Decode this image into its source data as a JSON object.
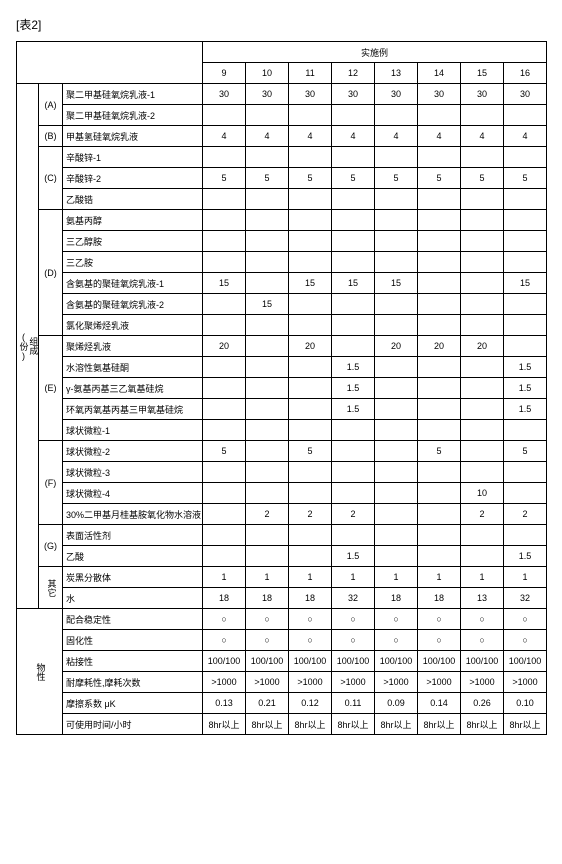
{
  "title": "[表2]",
  "section_header": "实施例",
  "composition_header": "组成\n(份)",
  "properties_header": "物性",
  "groups": {
    "A": "(A)",
    "B": "(B)",
    "C": "(C)",
    "D": "(D)",
    "E": "(E)",
    "F": "(F)",
    "G": "(G)",
    "other": "其它"
  },
  "cols": [
    "9",
    "10",
    "11",
    "12",
    "13",
    "14",
    "15",
    "16"
  ],
  "rows": [
    {
      "l": "聚二甲基硅氧烷乳液-1",
      "v": [
        "30",
        "30",
        "30",
        "30",
        "30",
        "30",
        "30",
        "30"
      ]
    },
    {
      "l": "聚二甲基硅氧烷乳液-2",
      "v": [
        "",
        "",
        "",
        "",
        "",
        "",
        "",
        ""
      ]
    },
    {
      "l": "甲基氢硅氧烷乳液",
      "v": [
        "4",
        "4",
        "4",
        "4",
        "4",
        "4",
        "4",
        "4"
      ]
    },
    {
      "l": "辛酸锌-1",
      "v": [
        "",
        "",
        "",
        "",
        "",
        "",
        "",
        ""
      ]
    },
    {
      "l": "辛酸锌-2",
      "v": [
        "5",
        "5",
        "5",
        "5",
        "5",
        "5",
        "5",
        "5"
      ]
    },
    {
      "l": "乙酸锆",
      "v": [
        "",
        "",
        "",
        "",
        "",
        "",
        "",
        ""
      ]
    },
    {
      "l": "氨基丙醇",
      "v": [
        "",
        "",
        "",
        "",
        "",
        "",
        "",
        ""
      ]
    },
    {
      "l": "三乙醇胺",
      "v": [
        "",
        "",
        "",
        "",
        "",
        "",
        "",
        ""
      ]
    },
    {
      "l": "三乙胺",
      "v": [
        "",
        "",
        "",
        "",
        "",
        "",
        "",
        ""
      ]
    },
    {
      "l": "含氨基的聚硅氧烷乳液-1",
      "v": [
        "15",
        "",
        "15",
        "15",
        "15",
        "",
        "",
        "15"
      ]
    },
    {
      "l": "含氨基的聚硅氧烷乳液-2",
      "v": [
        "",
        "15",
        "",
        "",
        "",
        "",
        "",
        ""
      ]
    },
    {
      "l": "氯化聚烯烃乳液",
      "v": [
        "",
        "",
        "",
        "",
        "",
        "",
        "",
        ""
      ]
    },
    {
      "l": "聚烯烃乳液",
      "v": [
        "20",
        "",
        "20",
        "",
        "20",
        "20",
        "20",
        ""
      ]
    },
    {
      "l": "水溶性氨基硅酮",
      "v": [
        "",
        "",
        "",
        "1.5",
        "",
        "",
        "",
        "1.5"
      ]
    },
    {
      "l": "γ-氨基丙基三乙氧基硅烷",
      "v": [
        "",
        "",
        "",
        "1.5",
        "",
        "",
        "",
        "1.5"
      ]
    },
    {
      "l": "环氧丙氧基丙基三甲氧基硅烷",
      "v": [
        "",
        "",
        "",
        "1.5",
        "",
        "",
        "",
        "1.5"
      ]
    },
    {
      "l": "球状微粒-1",
      "v": [
        "",
        "",
        "",
        "",
        "",
        "",
        "",
        ""
      ]
    },
    {
      "l": "球状微粒-2",
      "v": [
        "5",
        "",
        "5",
        "",
        "",
        "5",
        "",
        "5"
      ]
    },
    {
      "l": "球状微粒-3",
      "v": [
        "",
        "",
        "",
        "",
        "",
        "",
        "",
        ""
      ]
    },
    {
      "l": "球状微粒-4",
      "v": [
        "",
        "",
        "",
        "",
        "",
        "",
        "10",
        ""
      ]
    },
    {
      "l": "30%二甲基月桂基胺氧化物水溶液",
      "v": [
        "",
        "2",
        "2",
        "2",
        "",
        "",
        "2",
        "2"
      ]
    },
    {
      "l": "表面活性剂",
      "v": [
        "",
        "",
        "",
        "",
        "",
        "",
        "",
        ""
      ]
    },
    {
      "l": "乙酸",
      "v": [
        "",
        "",
        "",
        "1.5",
        "",
        "",
        "",
        "1.5"
      ]
    },
    {
      "l": "炭黑分散体",
      "v": [
        "1",
        "1",
        "1",
        "1",
        "1",
        "1",
        "1",
        "1"
      ]
    },
    {
      "l": "水",
      "v": [
        "18",
        "18",
        "18",
        "32",
        "18",
        "18",
        "13",
        "32"
      ]
    }
  ],
  "props": [
    {
      "l": "配合稳定性",
      "v": [
        "○",
        "○",
        "○",
        "○",
        "○",
        "○",
        "○",
        "○"
      ]
    },
    {
      "l": "固化性",
      "v": [
        "○",
        "○",
        "○",
        "○",
        "○",
        "○",
        "○",
        "○"
      ]
    },
    {
      "l": "粘接性",
      "v": [
        "100/100",
        "100/100",
        "100/100",
        "100/100",
        "100/100",
        "100/100",
        "100/100",
        "100/100"
      ]
    },
    {
      "l": "耐摩耗性,摩耗次数",
      "v": [
        ">1000",
        ">1000",
        ">1000",
        ">1000",
        ">1000",
        ">1000",
        ">1000",
        ">1000"
      ]
    },
    {
      "l": "摩擦系数 μK",
      "v": [
        "0.13",
        "0.21",
        "0.12",
        "0.11",
        "0.09",
        "0.14",
        "0.26",
        "0.10"
      ]
    },
    {
      "l": "可使用时间/小时",
      "v": [
        "8hr以上",
        "8hr以上",
        "8hr以上",
        "8hr以上",
        "8hr以上",
        "8hr以上",
        "8hr以上",
        "8hr以上"
      ]
    }
  ]
}
